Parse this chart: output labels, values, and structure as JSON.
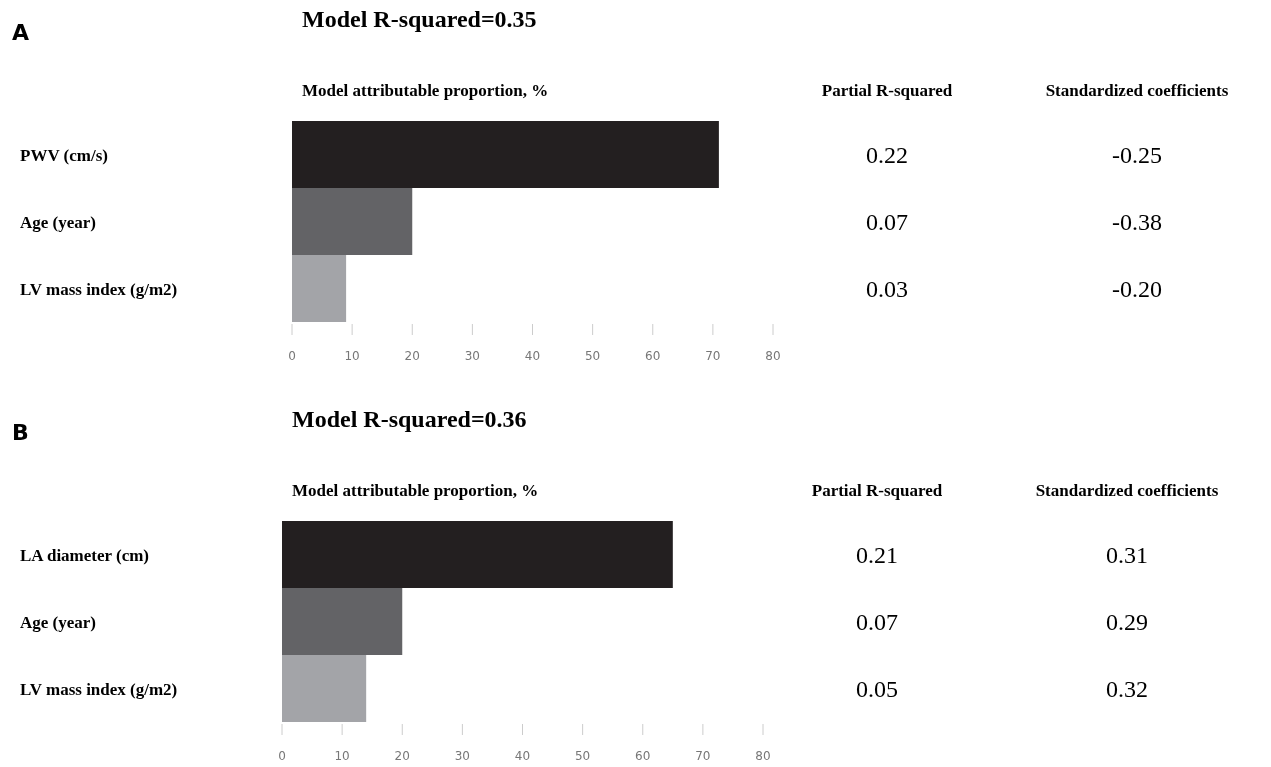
{
  "chart_data": [
    {
      "type": "bar",
      "orientation": "horizontal",
      "title": "Model R-squared=0.35",
      "xlabel": "Model attributable proportion, %",
      "categories": [
        "PWV (cm/s)",
        "Age (year)",
        "LV mass index (g/m2)"
      ],
      "values": [
        71,
        20,
        9
      ],
      "colors": [
        "#231f20",
        "#636366",
        "#a3a4a8"
      ],
      "xlim": [
        0,
        80
      ],
      "xticks": [
        0,
        10,
        20,
        30,
        40,
        50,
        60,
        70,
        80
      ],
      "annotations": [
        "A",
        "Partial R-squared",
        "Standardized coefficients",
        "0.22",
        "-0.25",
        "0.07",
        "-0.38",
        "0.03",
        "-0.20"
      ]
    },
    {
      "type": "bar",
      "orientation": "horizontal",
      "title": "Model R-squared=0.36",
      "xlabel": "Model attributable proportion, %",
      "categories": [
        "LA diameter (cm)",
        "Age (year)",
        "LV mass index (g/m2)"
      ],
      "values": [
        65,
        20,
        14
      ],
      "colors": [
        "#231f20",
        "#636366",
        "#a3a4a8"
      ],
      "xlim": [
        0,
        80
      ],
      "xticks": [
        0,
        10,
        20,
        30,
        40,
        50,
        60,
        70,
        80
      ],
      "annotations": [
        "B",
        "Partial R-squared",
        "Standardized coefficients",
        "0.21",
        "0.31",
        "0.07",
        "0.29",
        "0.05",
        "0.32"
      ]
    }
  ]
}
